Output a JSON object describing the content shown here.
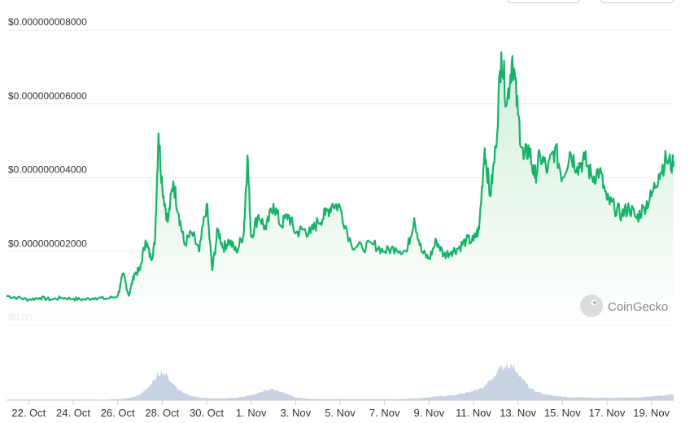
{
  "watermark": {
    "text": "CoinGecko",
    "icon": "coingecko-gecko-icon"
  },
  "colors": {
    "line": "#17b26a",
    "fill_top": "#d8f3de",
    "volume": "#c9d2e3",
    "grid": "#eeeeee"
  },
  "chart_data": {
    "type": "area",
    "title": "",
    "xlabel": "",
    "ylabel": "",
    "y_tick_labels": [
      "$0.000000008000",
      "$0.000000006000",
      "$0.000000004000",
      "$0.000000002000",
      "$0.00"
    ],
    "y_ticks": [
      8e-09,
      6e-09,
      4e-09,
      2e-09,
      0
    ],
    "ylim": [
      0,
      8e-09
    ],
    "x_tick_labels": [
      "22. Oct",
      "24. Oct",
      "26. Oct",
      "28. Oct",
      "30. Oct",
      "1. Nov",
      "3. Nov",
      "5. Nov",
      "7. Nov",
      "9. Nov",
      "11. Nov",
      "13. Nov",
      "15. Nov",
      "17. Nov",
      "19. Nov"
    ],
    "x_ticks": [
      "2023-10-22",
      "2023-10-24",
      "2023-10-26",
      "2023-10-28",
      "2023-10-30",
      "2023-11-01",
      "2023-11-03",
      "2023-11-05",
      "2023-11-07",
      "2023-11-09",
      "2023-11-11",
      "2023-11-13",
      "2023-11-15",
      "2023-11-17",
      "2023-11-19"
    ],
    "xlim": [
      "2023-10-21 00:00",
      "2023-11-20 00:00"
    ],
    "grid": true,
    "legend": "none",
    "series": [
      {
        "values_x": [
          "2023-10-21 00:00",
          "2023-10-21 12:00",
          "2023-10-22 00:00",
          "2023-10-22 12:00",
          "2023-10-23 00:00",
          "2023-10-23 12:00",
          "2023-10-24 00:00",
          "2023-10-24 12:00",
          "2023-10-25 00:00",
          "2023-10-25 12:00",
          "2023-10-26 00:00",
          "2023-10-26 06:00",
          "2023-10-26 12:00",
          "2023-10-26 18:00",
          "2023-10-27 00:00",
          "2023-10-27 06:00",
          "2023-10-27 12:00",
          "2023-10-27 16:00",
          "2023-10-27 20:00",
          "2023-10-28 00:00",
          "2023-10-28 06:00",
          "2023-10-28 12:00",
          "2023-10-28 18:00",
          "2023-10-29 00:00",
          "2023-10-29 08:00",
          "2023-10-29 16:00",
          "2023-10-30 00:00",
          "2023-10-30 06:00",
          "2023-10-30 12:00",
          "2023-10-30 18:00",
          "2023-10-31 00:00",
          "2023-10-31 08:00",
          "2023-10-31 16:00",
          "2023-10-31 20:00",
          "2023-11-01 00:00",
          "2023-11-01 08:00",
          "2023-11-01 16:00",
          "2023-11-02 00:00",
          "2023-11-02 08:00",
          "2023-11-02 16:00",
          "2023-11-03 00:00",
          "2023-11-03 08:00",
          "2023-11-03 16:00",
          "2023-11-04 00:00",
          "2023-11-04 08:00",
          "2023-11-04 16:00",
          "2023-11-05 00:00",
          "2023-11-05 12:00",
          "2023-11-06 00:00",
          "2023-11-06 12:00",
          "2023-11-07 00:00",
          "2023-11-07 12:00",
          "2023-11-08 00:00",
          "2023-11-08 08:00",
          "2023-11-08 16:00",
          "2023-11-09 00:00",
          "2023-11-09 08:00",
          "2023-11-09 16:00",
          "2023-11-10 00:00",
          "2023-11-10 08:00",
          "2023-11-10 16:00",
          "2023-11-11 00:00",
          "2023-11-11 06:00",
          "2023-11-11 12:00",
          "2023-11-11 18:00",
          "2023-11-12 00:00",
          "2023-11-12 06:00",
          "2023-11-12 12:00",
          "2023-11-12 18:00",
          "2023-11-13 00:00",
          "2023-11-13 06:00",
          "2023-11-13 12:00",
          "2023-11-13 18:00",
          "2023-11-14 00:00",
          "2023-11-14 08:00",
          "2023-11-14 16:00",
          "2023-11-15 00:00",
          "2023-11-15 08:00",
          "2023-11-15 16:00",
          "2023-11-16 00:00",
          "2023-11-16 08:00",
          "2023-11-16 16:00",
          "2023-11-17 00:00",
          "2023-11-17 08:00",
          "2023-11-17 16:00",
          "2023-11-18 00:00",
          "2023-11-18 08:00",
          "2023-11-18 16:00",
          "2023-11-19 00:00",
          "2023-11-19 08:00",
          "2023-11-19 16:00",
          "2023-11-20 00:00"
        ],
        "values_y": [
          8e-10,
          7.5e-10,
          7e-10,
          7.5e-10,
          7e-10,
          7.5e-10,
          7.2e-10,
          7e-10,
          7.5e-10,
          7.2e-10,
          8e-10,
          1.4e-09,
          8e-10,
          1.4e-09,
          1.5e-09,
          2.3e-09,
          1.8e-09,
          2.2e-09,
          5.2e-09,
          3.8e-09,
          2.8e-09,
          3.9e-09,
          3e-09,
          2.2e-09,
          2.5e-09,
          2e-09,
          3.3e-09,
          1.5e-09,
          2.6e-09,
          2.1e-09,
          2.3e-09,
          2e-09,
          2.5e-09,
          4.6e-09,
          2.4e-09,
          3e-09,
          2.6e-09,
          3.3e-09,
          2.7e-09,
          3e-09,
          2.5e-09,
          2.6e-09,
          2.5e-09,
          2.8e-09,
          3e-09,
          3.3e-09,
          3.2e-09,
          2.2e-09,
          2.1e-09,
          2.2e-09,
          2e-09,
          2.1e-09,
          2e-09,
          2.9e-09,
          2e-09,
          1.8e-09,
          2.3e-09,
          1.9e-09,
          2e-09,
          2.1e-09,
          2.3e-09,
          2.3e-09,
          2.6e-09,
          4.8e-09,
          3.5e-09,
          4.8e-09,
          7.4e-09,
          6e-09,
          7.3e-09,
          5.7e-09,
          4.5e-09,
          4.8e-09,
          4e-09,
          4.6e-09,
          4.2e-09,
          4.8e-09,
          4e-09,
          4.7e-09,
          4.3e-09,
          4.5e-09,
          4e-09,
          4.2e-09,
          3.4e-09,
          3.2e-09,
          3e-09,
          3.2e-09,
          2.9e-09,
          3.2e-09,
          3.5e-09,
          4.1e-09,
          4.5e-09,
          4.3e-09
        ],
        "volume_rel": [
          0.02,
          0.02,
          0.02,
          0.02,
          0.02,
          0.02,
          0.02,
          0.02,
          0.02,
          0.02,
          0.03,
          0.04,
          0.06,
          0.1,
          0.15,
          0.3,
          0.45,
          0.55,
          0.75,
          0.8,
          0.65,
          0.45,
          0.3,
          0.2,
          0.12,
          0.08,
          0.06,
          0.05,
          0.05,
          0.05,
          0.06,
          0.07,
          0.1,
          0.12,
          0.15,
          0.2,
          0.28,
          0.3,
          0.25,
          0.15,
          0.08,
          0.05,
          0.04,
          0.03,
          0.03,
          0.03,
          0.03,
          0.03,
          0.03,
          0.03,
          0.03,
          0.03,
          0.04,
          0.05,
          0.06,
          0.08,
          0.1,
          0.12,
          0.14,
          0.17,
          0.2,
          0.25,
          0.3,
          0.4,
          0.55,
          0.75,
          0.9,
          1.0,
          0.95,
          0.8,
          0.55,
          0.35,
          0.25,
          0.2,
          0.15,
          0.12,
          0.1,
          0.08,
          0.08,
          0.08,
          0.07,
          0.07,
          0.07,
          0.07,
          0.08,
          0.08,
          0.08,
          0.09,
          0.1,
          0.12,
          0.14,
          0.16
        ]
      }
    ]
  }
}
